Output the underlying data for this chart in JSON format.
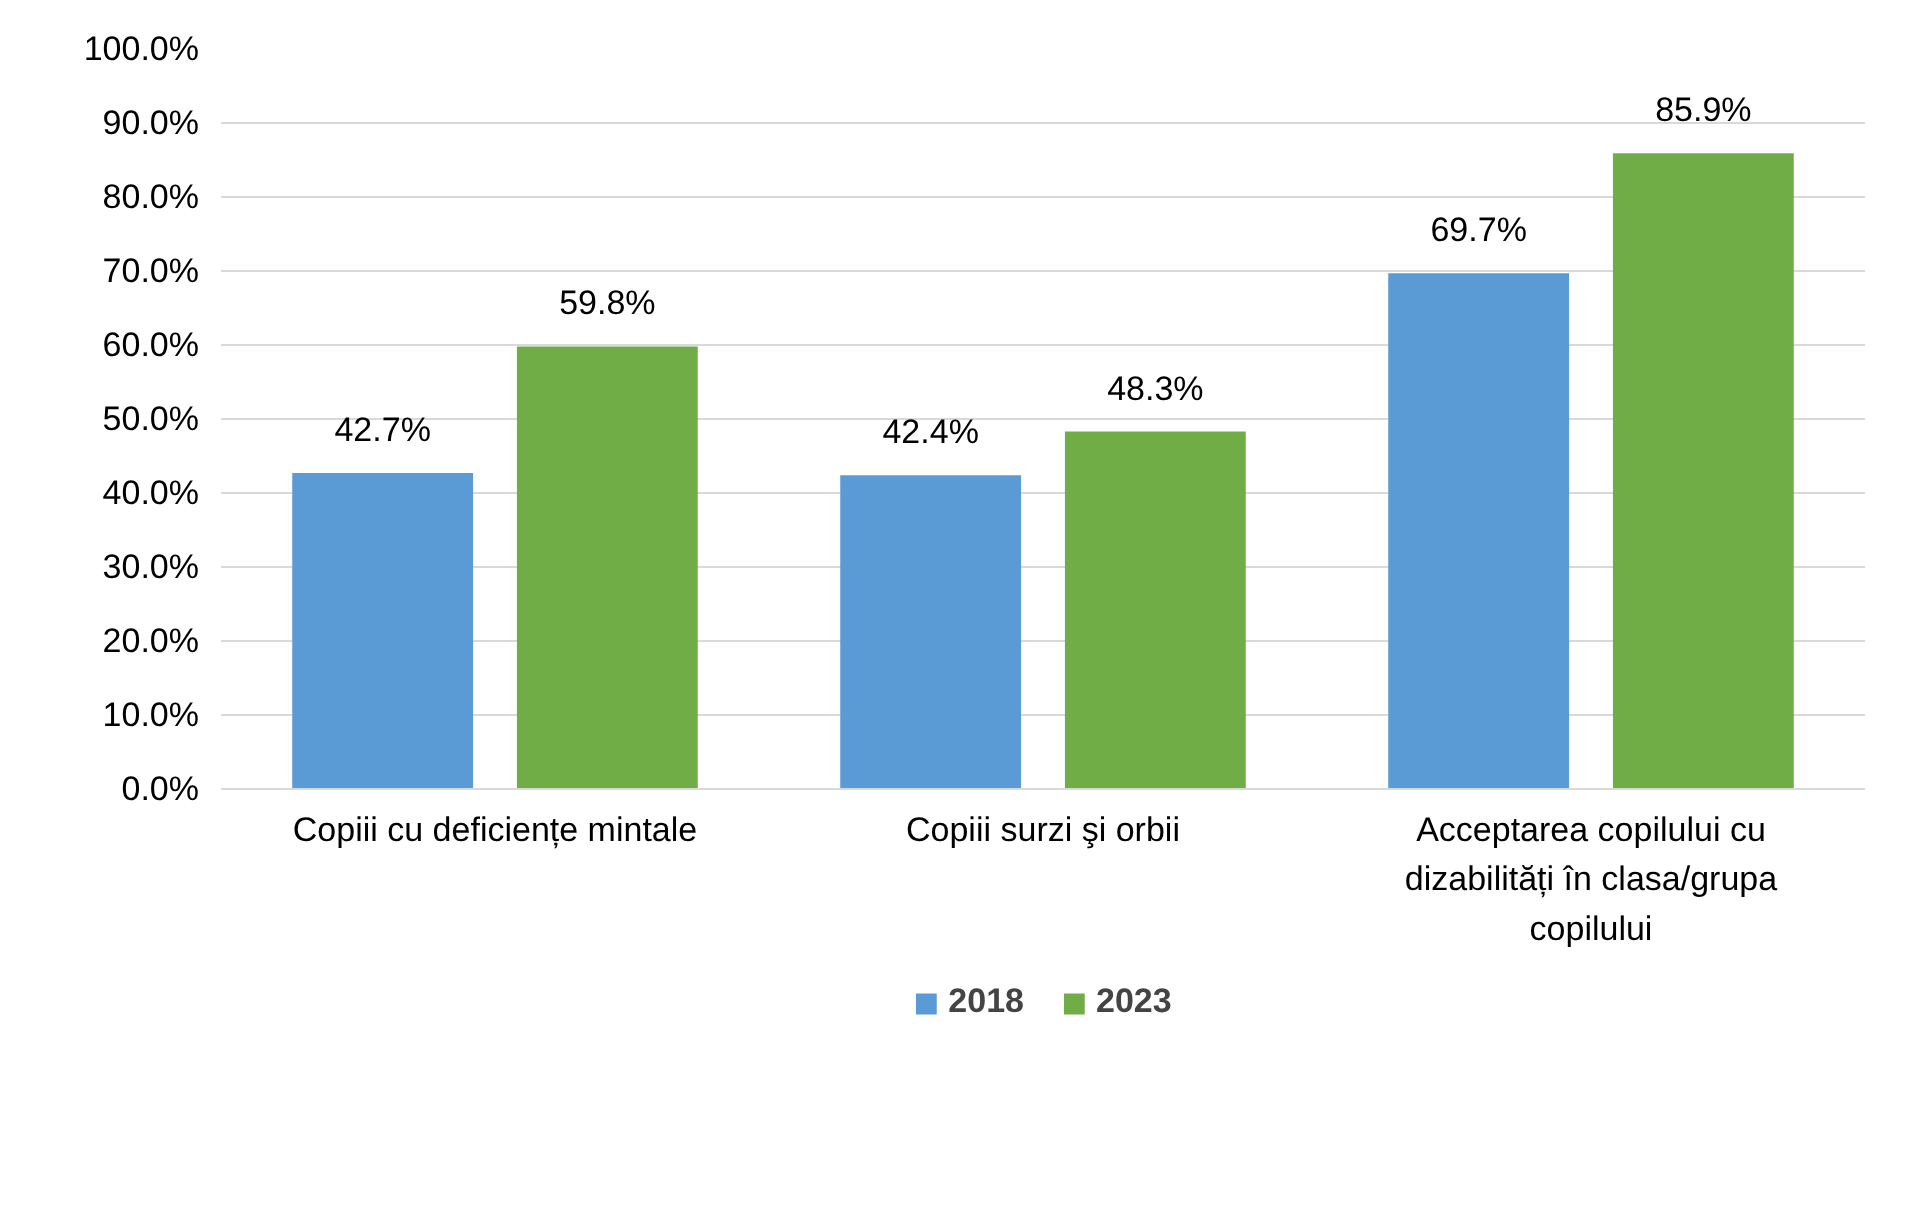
{
  "chart_data": {
    "type": "bar",
    "categories": [
      "Copiii cu deficiențe mintale",
      "Copiii surzi şi orbii",
      "Acceptarea copilului cu dizabilități în clasa/grupa copilului"
    ],
    "series": [
      {
        "name": "2018",
        "color": "#5b9bd5",
        "values": [
          42.7,
          42.4,
          69.7
        ],
        "value_labels": [
          "42.7%",
          "42.4%",
          "69.7%"
        ]
      },
      {
        "name": "2023",
        "color": "#70ad47",
        "values": [
          59.8,
          48.3,
          85.9
        ],
        "value_labels": [
          "59.8%",
          "48.3%",
          "85.9%"
        ]
      }
    ],
    "ylim": [
      0,
      100
    ],
    "yticks": [
      {
        "value": 0,
        "label": "0.0%"
      },
      {
        "value": 10,
        "label": "10.0%"
      },
      {
        "value": 20,
        "label": "20.0%"
      },
      {
        "value": 30,
        "label": "30.0%"
      },
      {
        "value": 40,
        "label": "40.0%"
      },
      {
        "value": 50,
        "label": "50.0%"
      },
      {
        "value": 60,
        "label": "60.0%"
      },
      {
        "value": 70,
        "label": "70.0%"
      },
      {
        "value": 80,
        "label": "80.0%"
      },
      {
        "value": 90,
        "label": "90.0%"
      },
      {
        "value": 100,
        "label": "100.0%"
      }
    ],
    "grid": "y",
    "legend": "bottom"
  }
}
